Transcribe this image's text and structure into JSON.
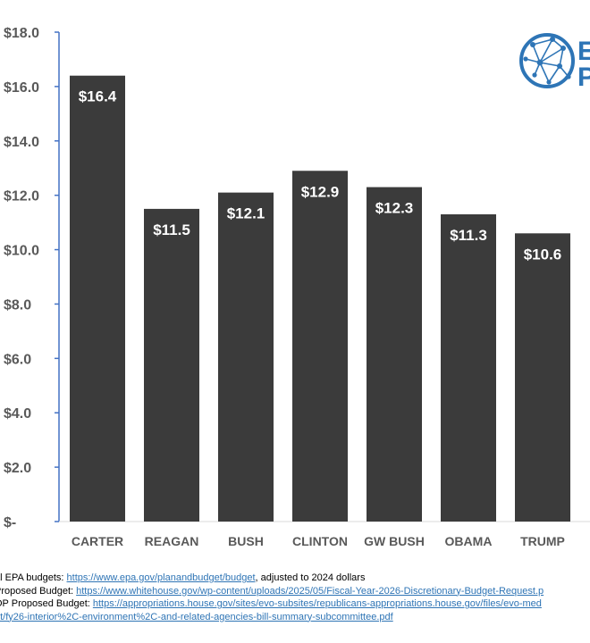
{
  "chart_data": {
    "type": "bar",
    "categories": [
      "CARTER",
      "REAGAN",
      "BUSH",
      "CLINTON",
      "GW BUSH",
      "OBAMA",
      "TRUMP"
    ],
    "values": [
      16.4,
      11.5,
      12.1,
      12.9,
      12.3,
      11.3,
      10.6
    ],
    "data_labels": [
      "$16.4",
      "$11.5",
      "$12.1",
      "$12.9",
      "$12.3",
      "$11.3",
      "$10.6"
    ],
    "title": "",
    "xlabel": "",
    "ylabel": "",
    "ylim": [
      0,
      18
    ],
    "yticks": [
      0,
      2,
      4,
      6,
      8,
      10,
      12,
      14,
      16,
      18
    ],
    "ytick_labels": [
      "$-",
      "$2.0",
      "$4.0",
      "$6.0",
      "$8.0",
      "$10.0",
      "$12.0",
      "$14.0",
      "$16.0",
      "$18.0"
    ],
    "grid": false,
    "bar_color": "#3b3b3b",
    "axis_color": "#4472c4"
  },
  "logo": {
    "name": "network-globe-logo",
    "color": "#2e75b6",
    "letters": [
      "E",
      "P"
    ]
  },
  "sources": [
    {
      "prefix": "al EPA budgets:  ",
      "link": "https://www.epa.gov/planandbudget/budget",
      "suffix": ", adjusted to 2024 dollars"
    },
    {
      "prefix": " Proposed Budget: ",
      "link": "https://www.whitehouse.gov/wp-content/uploads/2025/05/Fiscal-Year-2026-Discretionary-Budget-Request.p",
      "suffix": ""
    },
    {
      "prefix": "OP Proposed Budget: ",
      "link": "https://appropriations.house.gov/sites/evo-subsites/republicans-appropriations.house.gov/files/evo-med",
      "suffix": ""
    },
    {
      "prefix": "",
      "link": "nt/fy26-interior%2C-environment%2C-and-related-agencies-bill-summary-subcommittee.pdf",
      "suffix": ""
    }
  ]
}
